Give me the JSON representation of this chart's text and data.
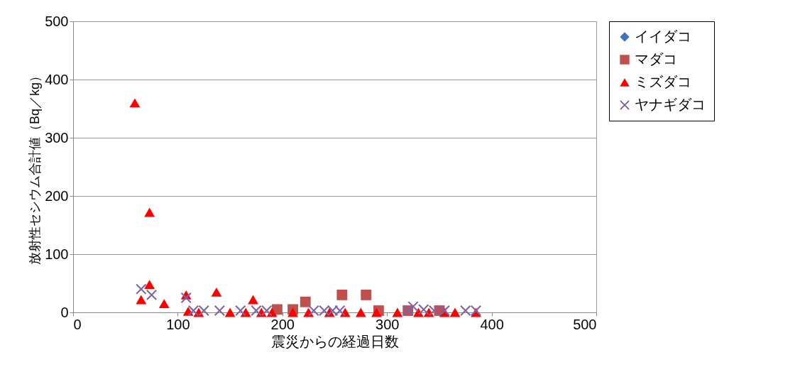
{
  "chart_data": {
    "type": "scatter",
    "xlabel": "震災からの経過日数",
    "ylabel": "放射性セシウム合計値（Bq／kg）",
    "xlim": [
      0,
      500
    ],
    "ylim": [
      0,
      500
    ],
    "xticks": [
      0,
      100,
      200,
      300,
      400,
      500
    ],
    "yticks": [
      0,
      100,
      200,
      300,
      400,
      500
    ],
    "grid": "y",
    "legend": "top right",
    "series": [
      {
        "name": "イイダコ",
        "color": "#4472c4",
        "marker": "diamond"
      },
      {
        "name": "マダコ",
        "color": "#c0504d",
        "marker": "square",
        "x": [
          195,
          210,
          222,
          257,
          280,
          292,
          320,
          340,
          350
        ],
        "values": [
          5,
          5,
          18,
          30,
          30,
          3,
          3,
          null,
          3
        ]
      },
      {
        "name": "ミズダコ",
        "color": "#ff0000",
        "marker": "triangle",
        "x": [
          59,
          73,
          73,
          65,
          87,
          108,
          110,
          120,
          137,
          150,
          165,
          172,
          180,
          190,
          210,
          225,
          245,
          260,
          275,
          290,
          310,
          330,
          340,
          355,
          365,
          385
        ],
        "values": [
          360,
          172,
          48,
          22,
          15,
          30,
          2,
          0,
          35,
          0,
          0,
          22,
          0,
          0,
          0,
          0,
          0,
          0,
          0,
          0,
          0,
          0,
          0,
          0,
          0,
          0
        ]
      },
      {
        "name": "ヤナギダコ",
        "color": "#8064a2",
        "marker": "cross",
        "x": [
          65,
          75,
          108,
          115,
          125,
          140,
          160,
          175,
          185,
          230,
          240,
          248,
          255,
          320,
          325,
          335,
          345,
          355,
          375,
          385
        ],
        "values": [
          40,
          30,
          25,
          3,
          3,
          3,
          3,
          3,
          3,
          3,
          3,
          3,
          3,
          3,
          10,
          5,
          3,
          3,
          3,
          3
        ]
      }
    ]
  }
}
